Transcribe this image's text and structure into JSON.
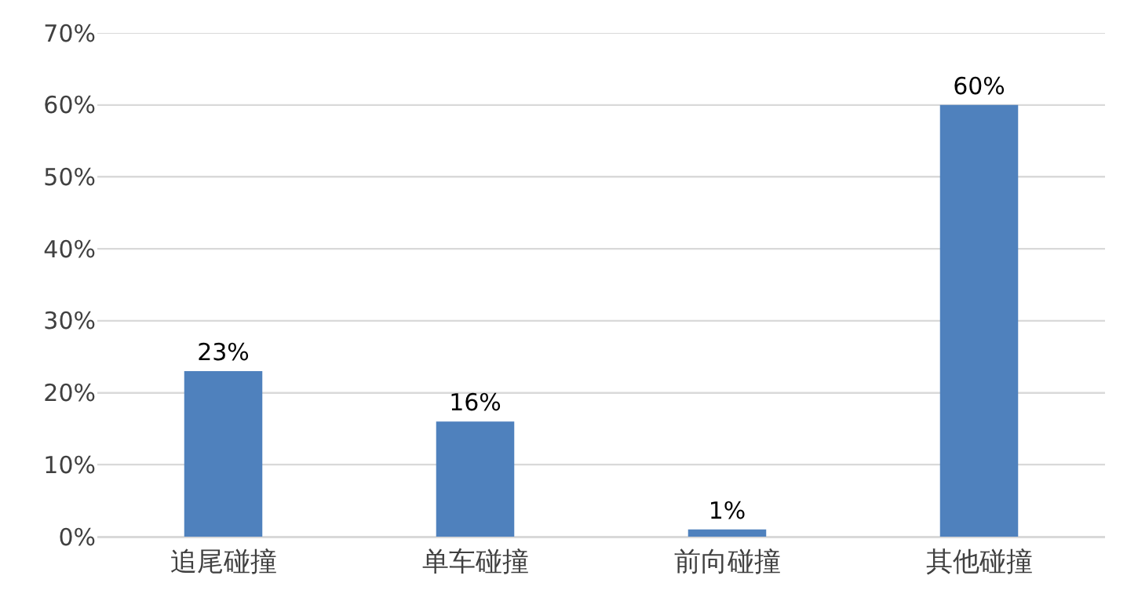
{
  "chart_data": {
    "type": "bar",
    "categories": [
      "追尾碰撞",
      "单车碰撞",
      "前向碰撞",
      "其他碰撞"
    ],
    "values": [
      23,
      16,
      1,
      60
    ],
    "value_labels": [
      "23%",
      "16%",
      "1%",
      "60%"
    ],
    "color": "#4f81bd",
    "ylim": [
      0,
      70
    ],
    "yticks": [
      {
        "value": 0,
        "label": "0%"
      },
      {
        "value": 10,
        "label": "10%"
      },
      {
        "value": 20,
        "label": "20%"
      },
      {
        "value": 30,
        "label": "30%"
      },
      {
        "value": 40,
        "label": "40%"
      },
      {
        "value": 50,
        "label": "50%"
      },
      {
        "value": 60,
        "label": "60%"
      },
      {
        "value": 70,
        "label": "70%"
      }
    ],
    "grid": "y"
  }
}
